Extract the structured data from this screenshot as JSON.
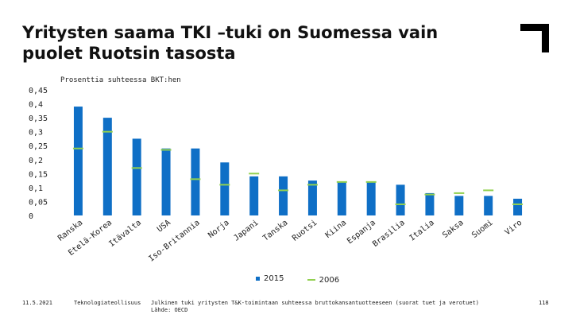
{
  "title": "Yritysten saama TKI –tuki on Suomessa vain puolet Ruotsin tasosta",
  "colors": {
    "bar": "#0f6fc6",
    "marker": "#92d050",
    "logo": "#000000"
  },
  "chart_data": {
    "type": "bar",
    "subtitle": "Prosenttia suhteessa BKT:hen",
    "categories": [
      "Ranska",
      "Etelä-Korea",
      "Itävalta",
      "USA",
      "Iso-Britannia",
      "Norja",
      "Japani",
      "Tanska",
      "Ruotsi",
      "Kiina",
      "Espanja",
      "Brasilia",
      "Italia",
      "Saksa",
      "Suomi",
      "Viro"
    ],
    "series": [
      {
        "name": "2015",
        "mark": "bar",
        "values": [
          0.39,
          0.35,
          0.275,
          0.24,
          0.24,
          0.19,
          0.14,
          0.14,
          0.125,
          0.12,
          0.12,
          0.11,
          0.08,
          0.07,
          0.07,
          0.06
        ]
      },
      {
        "name": "2006",
        "mark": "line-marker",
        "values": [
          0.24,
          0.3,
          0.17,
          0.235,
          0.13,
          0.11,
          0.15,
          0.09,
          0.11,
          0.12,
          0.12,
          0.04,
          0.075,
          0.08,
          0.09,
          0.04
        ]
      }
    ],
    "ylim": [
      0,
      0.45
    ],
    "yticks": [
      "0",
      "0,05",
      "0,1",
      "0,15",
      "0,2",
      "0,25",
      "0,3",
      "0,35",
      "0,4",
      "0,45"
    ],
    "grid": false,
    "legend": "bottom"
  },
  "footer": {
    "date": "11.5.2021",
    "org": "Teknologiateollisuus",
    "source_line1": "Julkinen tuki yritysten T&K-toimintaan suhteessa bruttokansantuotteeseen (suorat tuet ja verotuet)",
    "source_line2": "Lähde: OECD",
    "page": "118"
  }
}
